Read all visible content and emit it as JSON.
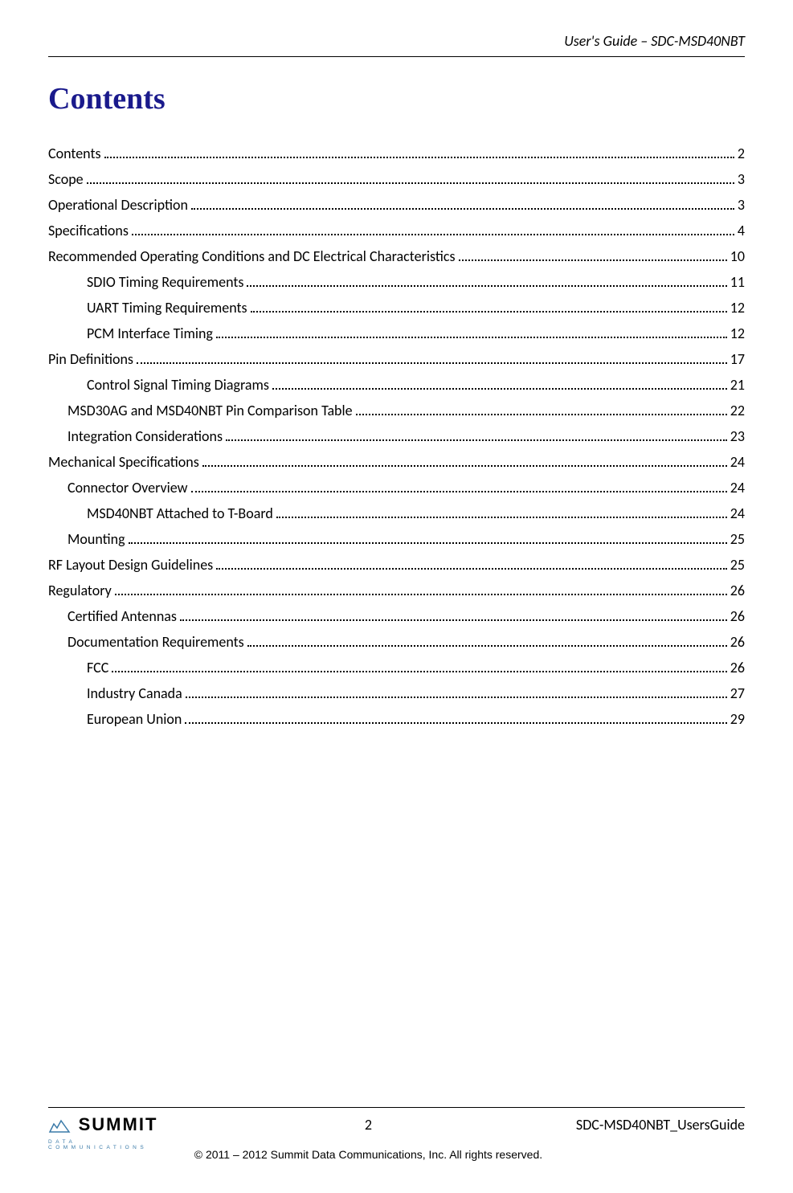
{
  "header": {
    "text": "User's Guide – SDC-MSD40NBT"
  },
  "title": "Contents",
  "toc_entries": [
    {
      "label": "Contents",
      "page": "2",
      "level": 0
    },
    {
      "label": "Scope",
      "page": "3",
      "level": 0
    },
    {
      "label": "Operational Description",
      "page": "3",
      "level": 0
    },
    {
      "label": "Specifications",
      "page": "4",
      "level": 0
    },
    {
      "label": "Recommended Operating Conditions and DC Electrical Characteristics",
      "page": "10",
      "level": 0
    },
    {
      "label": "SDIO Timing Requirements",
      "page": "11",
      "level": 2
    },
    {
      "label": "UART Timing Requirements",
      "page": "12",
      "level": 2
    },
    {
      "label": "PCM Interface Timing",
      "page": "12",
      "level": 2
    },
    {
      "label": "Pin Definitions",
      "page": "17",
      "level": 0
    },
    {
      "label": "Control Signal Timing Diagrams",
      "page": "21",
      "level": 2
    },
    {
      "label": "MSD30AG and MSD40NBT Pin Comparison Table",
      "page": "22",
      "level": 1
    },
    {
      "label": "Integration Considerations",
      "page": "23",
      "level": 1
    },
    {
      "label": "Mechanical Specifications",
      "page": "24",
      "level": 0
    },
    {
      "label": "Connector Overview",
      "page": "24",
      "level": 1
    },
    {
      "label": "MSD40NBT Attached to T-Board",
      "page": "24",
      "level": 2
    },
    {
      "label": "Mounting",
      "page": "25",
      "level": 1
    },
    {
      "label": "RF Layout Design Guidelines",
      "page": "25",
      "level": 0
    },
    {
      "label": "Regulatory",
      "page": "26",
      "level": 0
    },
    {
      "label": "Certified Antennas",
      "page": "26",
      "level": 1
    },
    {
      "label": "Documentation Requirements",
      "page": "26",
      "level": 1
    },
    {
      "label": "FCC",
      "page": "26",
      "level": 2
    },
    {
      "label": "Industry Canada",
      "page": "27",
      "level": 2
    },
    {
      "label": "European Union",
      "page": "29",
      "level": 2
    }
  ],
  "footer": {
    "page_number": "2",
    "doc_id": "SDC-MSD40NBT_UsersGuide",
    "copyright": "© 2011 – 2012 Summit Data Communications, Inc. All rights reserved.",
    "logo_main": "SUMMIT",
    "logo_sub": "DATA COMMUNICATIONS"
  }
}
